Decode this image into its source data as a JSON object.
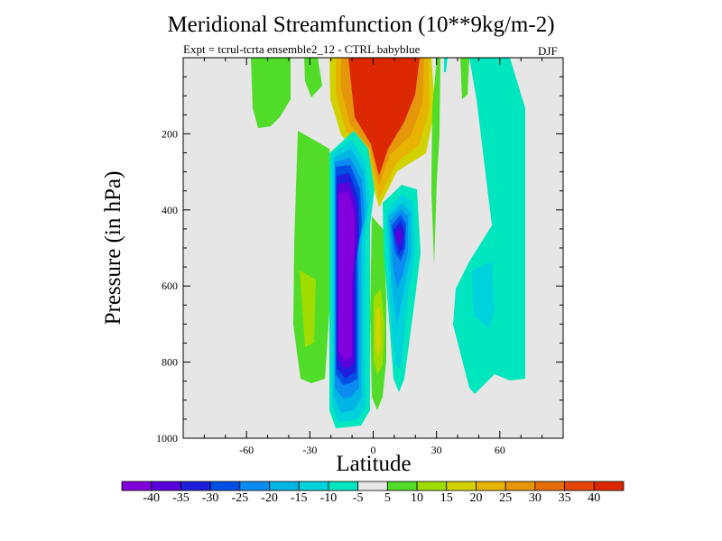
{
  "chart_data": {
    "type": "contour",
    "title": "Meridional Streamfunction (10**9kg/m-2)",
    "subtitle": "Expt = tcrul-tcrta   ensemble2_12 - CTRL babyblue",
    "season": "DJF",
    "xlabel": "Latitude",
    "ylabel": "Pressure (in hPa)",
    "xlim": [
      -90,
      90
    ],
    "ylim": [
      0,
      1000
    ],
    "y_inverted": true,
    "x_ticks": [
      -60,
      -30,
      0,
      30,
      60
    ],
    "x_tick_labels": [
      "-60",
      "-30",
      "0",
      "30",
      "60"
    ],
    "y_ticks": [
      200,
      400,
      600,
      800,
      1000
    ],
    "y_tick_labels": [
      "200",
      "400",
      "600",
      "800",
      "1000"
    ],
    "background_color": "#e6e6e6",
    "colorbar": {
      "labels": [
        "-40",
        "-35",
        "-30",
        "-25",
        "-20",
        "-15",
        "-10",
        "-5",
        "5",
        "10",
        "15",
        "20",
        "25",
        "30",
        "35",
        "40"
      ],
      "colors": [
        "#8200dc",
        "#5a00dc",
        "#1e1edc",
        "#0050e6",
        "#0a8cf0",
        "#00b4e6",
        "#00d2dc",
        "#00e6be",
        "#e6e6e6",
        "#50dc28",
        "#a0dc00",
        "#d2d200",
        "#e6b400",
        "#e6960a",
        "#e66e0a",
        "#e6460a",
        "#dc2800"
      ]
    },
    "features": [
      {
        "name": "southern-hadley-cell-minimum",
        "lat": -12,
        "pressure": 500,
        "min_value": -40
      },
      {
        "name": "nh-negative-cell",
        "lat": 12,
        "pressure": 420,
        "min_value": -30
      },
      {
        "name": "upper-positive-cell",
        "lat": 8,
        "pressure": 60,
        "max_value": 40
      },
      {
        "name": "sh-positive-band",
        "lat": -33,
        "pressure": 600,
        "max_value": 15
      },
      {
        "name": "nh-midlat-negative-band",
        "lat": 50,
        "pressure": 600,
        "min_value": -15
      },
      {
        "name": "equatorial-positive-tongue",
        "lat": 3,
        "pressure": 700,
        "max_value": 15
      }
    ]
  }
}
